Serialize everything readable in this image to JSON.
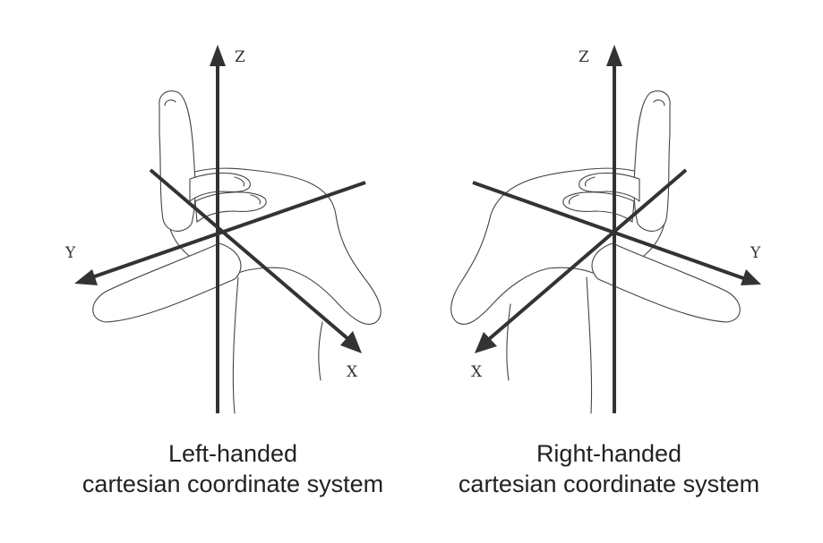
{
  "left_diagram": {
    "axes": {
      "z": "Z",
      "y": "Y",
      "x": "X"
    },
    "caption_line1": "Left-handed",
    "caption_line2": "cartesian coordinate system"
  },
  "right_diagram": {
    "axes": {
      "z": "Z",
      "y": "Y",
      "x": "X"
    },
    "caption_line1": "Right-handed",
    "caption_line2": "cartesian coordinate system"
  },
  "colors": {
    "axis": "#333333",
    "outline": "#444444",
    "background": "#ffffff"
  }
}
